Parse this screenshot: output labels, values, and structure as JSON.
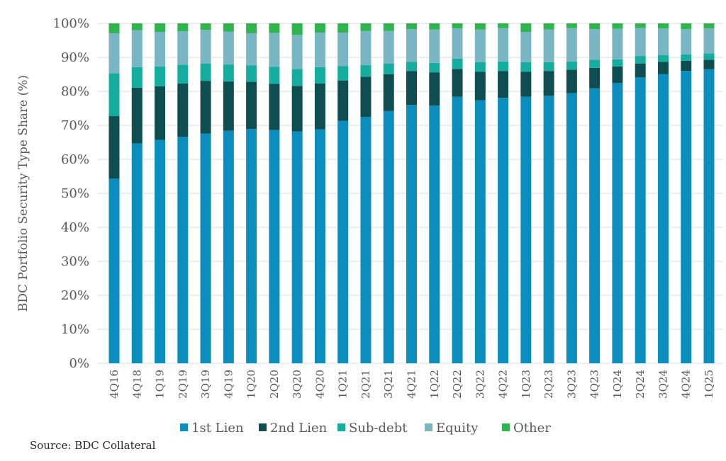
{
  "chart_data": {
    "type": "bar",
    "stacked": true,
    "ylabel": "BDC Portfolio Security Type Share (%)",
    "xlabel": "",
    "ylim": [
      0,
      100
    ],
    "yticks": [
      "0%",
      "10%",
      "20%",
      "30%",
      "40%",
      "50%",
      "60%",
      "70%",
      "80%",
      "90%",
      "100%"
    ],
    "grid": true,
    "legend_position": "bottom",
    "categories": [
      "4Q16",
      "4Q18",
      "1Q19",
      "2Q19",
      "3Q19",
      "4Q19",
      "1Q20",
      "2Q20",
      "3Q20",
      "4Q20",
      "1Q21",
      "2Q21",
      "3Q21",
      "4Q21",
      "1Q22",
      "2Q22",
      "3Q22",
      "4Q22",
      "1Q23",
      "2Q23",
      "3Q23",
      "4Q23",
      "1Q24",
      "2Q24",
      "3Q24",
      "4Q24",
      "1Q25"
    ],
    "series": [
      {
        "name": "1st Lien",
        "color": "#0b8dbd",
        "values": [
          54.3,
          64.7,
          65.7,
          66.6,
          67.6,
          68.4,
          68.9,
          68.6,
          68.2,
          68.8,
          71.3,
          72.5,
          74.2,
          76.0,
          75.8,
          78.4,
          77.4,
          78.1,
          78.4,
          78.7,
          79.5,
          80.9,
          82.5,
          84.1,
          85.1,
          86.0,
          86.5
        ]
      },
      {
        "name": "2nd Lien",
        "color": "#0e4d50",
        "values": [
          18.4,
          16.4,
          15.8,
          15.7,
          15.5,
          14.5,
          13.9,
          13.6,
          13.4,
          13.5,
          11.9,
          11.8,
          10.8,
          10.0,
          9.8,
          8.2,
          8.4,
          7.9,
          7.4,
          7.3,
          6.9,
          6.0,
          4.8,
          4.1,
          3.6,
          3.0,
          2.8
        ]
      },
      {
        "name": "Sub-debt",
        "color": "#14ad9f",
        "values": [
          12.6,
          6.0,
          5.8,
          5.5,
          5.1,
          5.0,
          4.8,
          5.0,
          5.0,
          4.8,
          4.2,
          3.4,
          3.2,
          2.7,
          2.8,
          3.0,
          2.8,
          2.8,
          2.8,
          2.6,
          2.4,
          2.4,
          2.1,
          2.2,
          2.0,
          1.9,
          1.9
        ]
      },
      {
        "name": "Equity",
        "color": "#77b6c2",
        "values": [
          11.8,
          10.9,
          10.2,
          9.9,
          9.9,
          9.7,
          9.5,
          10.0,
          10.0,
          10.2,
          9.9,
          10.1,
          9.6,
          9.6,
          9.8,
          8.9,
          9.6,
          9.8,
          8.9,
          9.6,
          9.8,
          9.0,
          9.0,
          8.2,
          7.8,
          7.4,
          7.3
        ]
      },
      {
        "name": "Other",
        "color": "#30b44e",
        "values": [
          2.9,
          2.0,
          2.5,
          2.3,
          1.9,
          2.4,
          2.9,
          2.8,
          3.4,
          2.7,
          2.7,
          2.2,
          2.2,
          1.7,
          1.8,
          1.5,
          1.8,
          1.4,
          2.5,
          1.8,
          1.4,
          1.7,
          1.6,
          1.4,
          1.5,
          1.7,
          1.5
        ]
      }
    ]
  },
  "source": "Source: BDC Collateral"
}
